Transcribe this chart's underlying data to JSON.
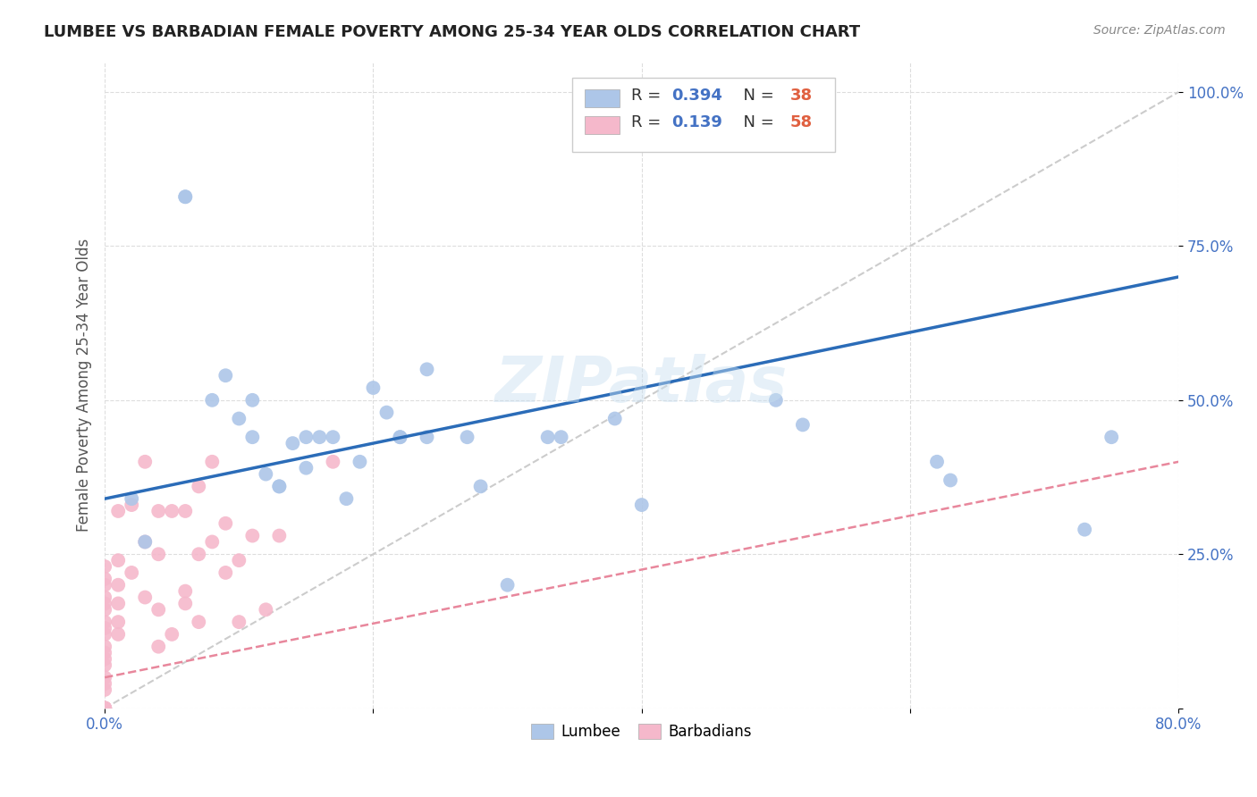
{
  "title": "LUMBEE VS BARBADIAN FEMALE POVERTY AMONG 25-34 YEAR OLDS CORRELATION CHART",
  "source": "Source: ZipAtlas.com",
  "ylabel": "Female Poverty Among 25-34 Year Olds",
  "xlim": [
    0.0,
    0.8
  ],
  "ylim": [
    0.0,
    1.05
  ],
  "lumbee_R": "0.394",
  "lumbee_N": "38",
  "barbadian_R": "0.139",
  "barbadian_N": "58",
  "lumbee_color": "#adc6e8",
  "barbadian_color": "#f5b8cb",
  "lumbee_line_color": "#2b6cb8",
  "barbadian_line_color": "#e8879c",
  "diagonal_color": "#cccccc",
  "watermark": "ZIPatlas",
  "lumbee_line_x0": 0.0,
  "lumbee_line_y0": 0.34,
  "lumbee_line_x1": 0.8,
  "lumbee_line_y1": 0.7,
  "barbadian_line_x0": 0.0,
  "barbadian_line_y0": 0.05,
  "barbadian_line_x1": 0.8,
  "barbadian_line_y1": 0.4,
  "lumbee_x": [
    0.02,
    0.03,
    0.06,
    0.06,
    0.08,
    0.09,
    0.1,
    0.11,
    0.11,
    0.12,
    0.13,
    0.13,
    0.14,
    0.15,
    0.15,
    0.16,
    0.17,
    0.18,
    0.19,
    0.2,
    0.21,
    0.22,
    0.22,
    0.24,
    0.24,
    0.27,
    0.28,
    0.3,
    0.33,
    0.34,
    0.38,
    0.4,
    0.5,
    0.52,
    0.62,
    0.63,
    0.73,
    0.75
  ],
  "lumbee_y": [
    0.34,
    0.27,
    0.83,
    0.83,
    0.5,
    0.54,
    0.47,
    0.44,
    0.5,
    0.38,
    0.36,
    0.36,
    0.43,
    0.39,
    0.44,
    0.44,
    0.44,
    0.34,
    0.4,
    0.52,
    0.48,
    0.44,
    0.44,
    0.44,
    0.55,
    0.44,
    0.36,
    0.2,
    0.44,
    0.44,
    0.47,
    0.33,
    0.5,
    0.46,
    0.4,
    0.37,
    0.29,
    0.44
  ],
  "barbadian_x": [
    0.0,
    0.0,
    0.0,
    0.0,
    0.0,
    0.0,
    0.0,
    0.0,
    0.0,
    0.0,
    0.0,
    0.0,
    0.0,
    0.0,
    0.0,
    0.0,
    0.0,
    0.0,
    0.0,
    0.0,
    0.0,
    0.0,
    0.0,
    0.0,
    0.0,
    0.01,
    0.01,
    0.01,
    0.01,
    0.01,
    0.01,
    0.02,
    0.02,
    0.03,
    0.03,
    0.03,
    0.04,
    0.04,
    0.04,
    0.04,
    0.05,
    0.05,
    0.06,
    0.06,
    0.06,
    0.07,
    0.07,
    0.07,
    0.08,
    0.08,
    0.09,
    0.09,
    0.1,
    0.1,
    0.11,
    0.12,
    0.13,
    0.17
  ],
  "barbadian_y": [
    0.0,
    0.0,
    0.0,
    0.0,
    0.0,
    0.0,
    0.0,
    0.0,
    0.0,
    0.03,
    0.04,
    0.05,
    0.07,
    0.08,
    0.09,
    0.1,
    0.12,
    0.13,
    0.14,
    0.16,
    0.17,
    0.18,
    0.2,
    0.21,
    0.23,
    0.12,
    0.14,
    0.17,
    0.2,
    0.24,
    0.32,
    0.22,
    0.33,
    0.18,
    0.27,
    0.4,
    0.1,
    0.16,
    0.25,
    0.32,
    0.12,
    0.32,
    0.17,
    0.19,
    0.32,
    0.14,
    0.25,
    0.36,
    0.27,
    0.4,
    0.22,
    0.3,
    0.24,
    0.14,
    0.28,
    0.16,
    0.28,
    0.4
  ]
}
